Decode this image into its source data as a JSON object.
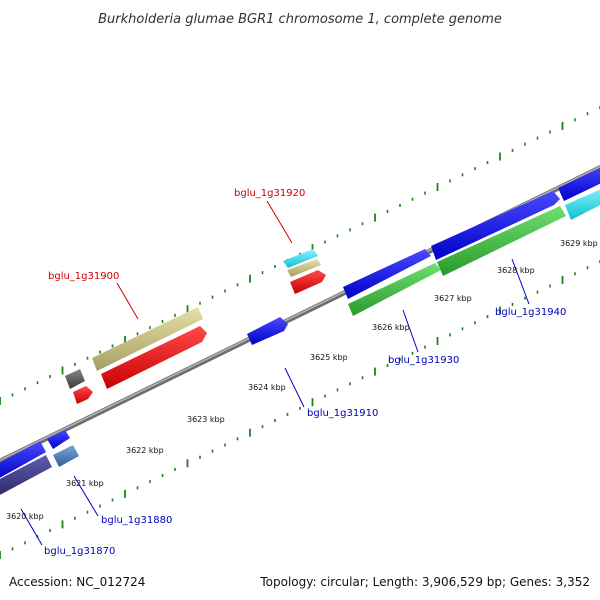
{
  "title": "Burkholderia glumae BGR1 chromosome 1, complete genome",
  "footer": {
    "accession": "Accession: NC_012724",
    "summary": "Topology: circular; Length: 3,906,529 bp; Genes: 3,352"
  },
  "scale": {
    "unit": "kbp",
    "ticks": [
      "3620 kbp",
      "3621 kbp",
      "3622 kbp",
      "3623 kbp",
      "3624 kbp",
      "3625 kbp",
      "3626 kbp",
      "3627 kbp",
      "3628 kbp",
      "3629 kbp"
    ]
  },
  "colors": {
    "backbone": "#8c8c8c",
    "dots": "#1e7f1e",
    "label_red": "#cc0000",
    "label_blue": "#0000bb",
    "gene_blue": "#1a1af0",
    "gene_red": "#ee0000",
    "gene_green": "#3cc43c",
    "gene_khaki": "#bfb878",
    "gene_cyan": "#1ee8f0",
    "gene_navy": "#3d3a8c",
    "gene_steel": "#4a7ab0",
    "gene_gray": "#5a5a5a"
  },
  "gene_labels": [
    {
      "text": "bglu_1g31920",
      "color": "red"
    },
    {
      "text": "bglu_1g31900",
      "color": "red"
    },
    {
      "text": "bglu_1g31940",
      "color": "blue"
    },
    {
      "text": "bglu_1g31930",
      "color": "blue"
    },
    {
      "text": "bglu_1g31910",
      "color": "blue"
    },
    {
      "text": "bglu_1g31880",
      "color": "blue"
    },
    {
      "text": "bglu_1g31870",
      "color": "blue"
    }
  ]
}
